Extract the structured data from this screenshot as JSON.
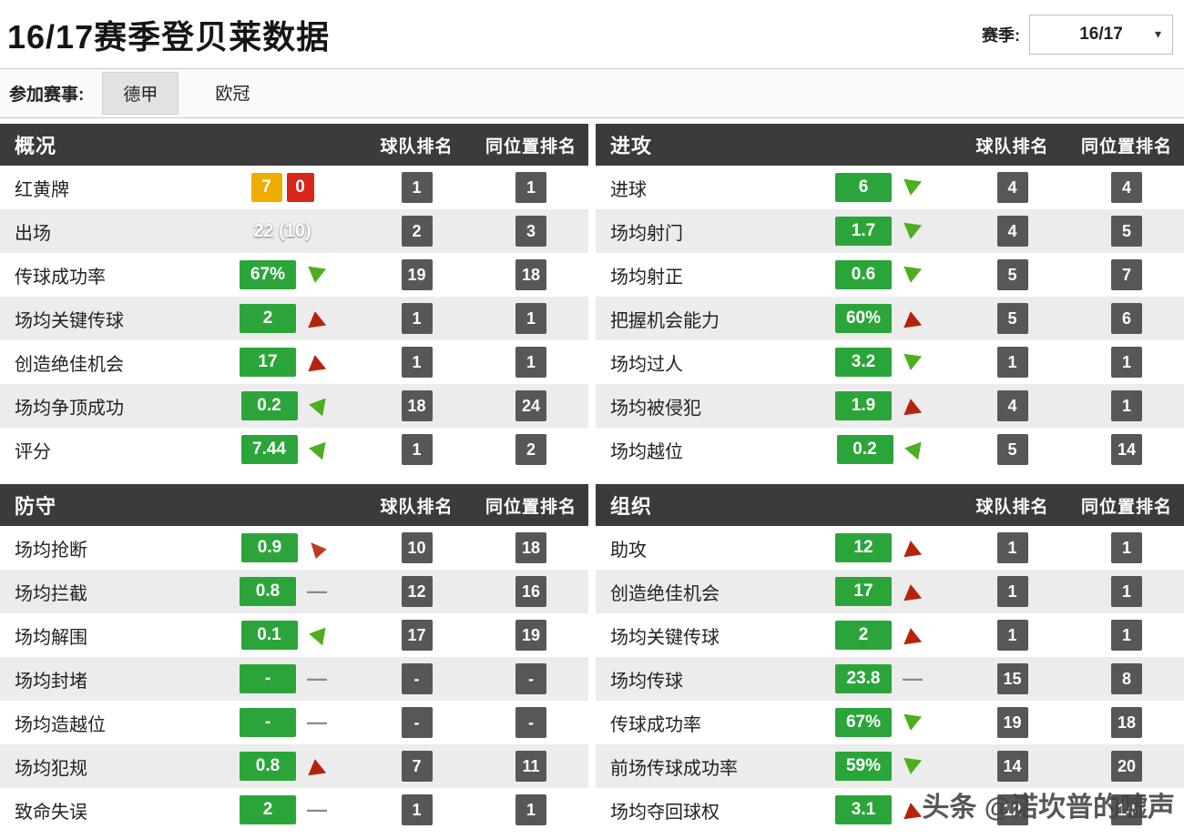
{
  "page": {
    "title": "16/17赛季登贝莱数据",
    "season": {
      "label": "赛季:",
      "value": "16/17",
      "caret": "▾"
    },
    "competitions": {
      "label": "参加赛事:",
      "tabs": [
        {
          "label": "德甲",
          "active": true
        },
        {
          "label": "欧冠",
          "active": false
        }
      ]
    },
    "watermark": "头条 @诺坎普的嘘声"
  },
  "columns": {
    "team_rank": "球队排名",
    "position_rank": "同位置排名"
  },
  "colors": {
    "badge_green": "#2ba53a",
    "arrow_red": "#b5230e",
    "arrow_green": "#4fae1f",
    "yellow_card": "#f0ad00",
    "red_card": "#d9261c",
    "header_bg": "#3b3b3b",
    "rank_bg": "#575757"
  },
  "panels": [
    {
      "id": "overview",
      "title": "概况",
      "rows": [
        {
          "label": "红黄牌",
          "type": "cards",
          "yellow": "7",
          "red": "0",
          "team_rank": "1",
          "position_rank": "1"
        },
        {
          "label": "出场",
          "type": "plain",
          "value": "22 (10)",
          "team_rank": "2",
          "position_rank": "3"
        },
        {
          "label": "传球成功率",
          "type": "badge",
          "value": "67%",
          "trend": "green-down",
          "team_rank": "19",
          "position_rank": "18"
        },
        {
          "label": "场均关键传球",
          "type": "badge",
          "value": "2",
          "trend": "red-up",
          "team_rank": "1",
          "position_rank": "1"
        },
        {
          "label": "创造绝佳机会",
          "type": "badge",
          "value": "17",
          "trend": "red-up",
          "team_rank": "1",
          "position_rank": "1"
        },
        {
          "label": "场均争顶成功",
          "type": "badge",
          "value": "0.2",
          "trend": "green-left",
          "team_rank": "18",
          "position_rank": "24"
        },
        {
          "label": "评分",
          "type": "badge",
          "value": "7.44",
          "trend": "green-left",
          "team_rank": "1",
          "position_rank": "2"
        }
      ]
    },
    {
      "id": "attack",
      "title": "进攻",
      "rows": [
        {
          "label": "进球",
          "type": "badge",
          "value": "6",
          "trend": "green-down",
          "team_rank": "4",
          "position_rank": "4"
        },
        {
          "label": "场均射门",
          "type": "badge",
          "value": "1.7",
          "trend": "green-down",
          "team_rank": "4",
          "position_rank": "5"
        },
        {
          "label": "场均射正",
          "type": "badge",
          "value": "0.6",
          "trend": "green-down",
          "team_rank": "5",
          "position_rank": "7"
        },
        {
          "label": "把握机会能力",
          "type": "badge",
          "value": "60%",
          "trend": "red-up",
          "team_rank": "5",
          "position_rank": "6"
        },
        {
          "label": "场均过人",
          "type": "badge",
          "value": "3.2",
          "trend": "green-down",
          "team_rank": "1",
          "position_rank": "1"
        },
        {
          "label": "场均被侵犯",
          "type": "badge",
          "value": "1.9",
          "trend": "red-up",
          "team_rank": "4",
          "position_rank": "1"
        },
        {
          "label": "场均越位",
          "type": "badge",
          "value": "0.2",
          "trend": "green-left",
          "team_rank": "5",
          "position_rank": "14"
        }
      ]
    },
    {
      "id": "defense",
      "title": "防守",
      "rows": [
        {
          "label": "场均抢断",
          "type": "badge",
          "value": "0.9",
          "trend": "red-up-slant",
          "team_rank": "10",
          "position_rank": "18"
        },
        {
          "label": "场均拦截",
          "type": "badge",
          "value": "0.8",
          "trend": "dash",
          "team_rank": "12",
          "position_rank": "16"
        },
        {
          "label": "场均解围",
          "type": "badge",
          "value": "0.1",
          "trend": "green-left",
          "team_rank": "17",
          "position_rank": "19"
        },
        {
          "label": "场均封堵",
          "type": "badge",
          "value": "-",
          "trend": "dash",
          "team_rank": "-",
          "position_rank": "-"
        },
        {
          "label": "场均造越位",
          "type": "badge",
          "value": "-",
          "trend": "dash",
          "team_rank": "-",
          "position_rank": "-"
        },
        {
          "label": "场均犯规",
          "type": "badge",
          "value": "0.8",
          "trend": "red-up",
          "team_rank": "7",
          "position_rank": "11"
        },
        {
          "label": "致命失误",
          "type": "badge",
          "value": "2",
          "trend": "dash",
          "team_rank": "1",
          "position_rank": "1"
        }
      ]
    },
    {
      "id": "organization",
      "title": "组织",
      "rows": [
        {
          "label": "助攻",
          "type": "badge",
          "value": "12",
          "trend": "red-up",
          "team_rank": "1",
          "position_rank": "1"
        },
        {
          "label": "创造绝佳机会",
          "type": "badge",
          "value": "17",
          "trend": "red-up",
          "team_rank": "1",
          "position_rank": "1"
        },
        {
          "label": "场均关键传球",
          "type": "badge",
          "value": "2",
          "trend": "red-up",
          "team_rank": "1",
          "position_rank": "1"
        },
        {
          "label": "场均传球",
          "type": "badge",
          "value": "23.8",
          "trend": "dash",
          "team_rank": "15",
          "position_rank": "8"
        },
        {
          "label": "传球成功率",
          "type": "badge",
          "value": "67%",
          "trend": "green-down",
          "team_rank": "19",
          "position_rank": "18"
        },
        {
          "label": "前场传球成功率",
          "type": "badge",
          "value": "59%",
          "trend": "green-down",
          "team_rank": "14",
          "position_rank": "20"
        },
        {
          "label": "场均夺回球权",
          "type": "badge",
          "value": "3.1",
          "trend": "red-up",
          "team_rank": "12",
          "position_rank": "14"
        }
      ]
    }
  ]
}
